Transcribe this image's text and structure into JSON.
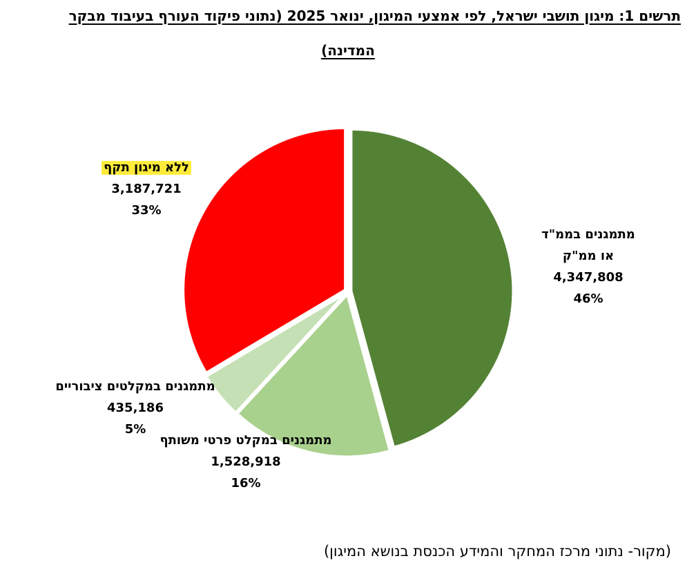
{
  "title": {
    "line1": "תרשים 1: מיגון תושבי ישראל, לפי אמצעי המיגון, ינואר 2025 (נתוני פיקוד העורף בעיבוד מבקר",
    "line2": "המדינה)"
  },
  "chart_data": {
    "type": "pie",
    "title": "תרשים 1: מיגון תושבי ישראל, לפי אמצעי המיגון, ינואר 2025 (נתוני פיקוד העורף בעיבוד מבקר המדינה)",
    "slices": [
      {
        "label_lines": [
          "מתמגנים בממ\"ד",
          "או ממ\"ק"
        ],
        "value": 4347808,
        "value_text": "4,347,808",
        "percent_text": "46%",
        "color": "#548235"
      },
      {
        "label_lines": [
          "מתמגנים במקלט פרטי משותף"
        ],
        "value": 1528918,
        "value_text": "1,528,918",
        "percent_text": "16%",
        "color": "#a9d18e"
      },
      {
        "label_lines": [
          "מתמגנים במקלטים ציבוריים"
        ],
        "value": 435186,
        "value_text": "435,186",
        "percent_text": "5%",
        "color": "#c5e0b4"
      },
      {
        "label_lines": [
          "ללא מיגון תקף"
        ],
        "value": 3187721,
        "value_text": "3,187,721",
        "percent_text": "33%",
        "color": "#ff0000",
        "label_highlight": "#ffeb3b"
      }
    ],
    "start": "12 o'clock",
    "direction": "clockwise",
    "legend": "none (labels beside slices)"
  },
  "source_note": "(מקור- נתוני מרכז המחקר והמידע הכנסת בנושא המיגון)"
}
